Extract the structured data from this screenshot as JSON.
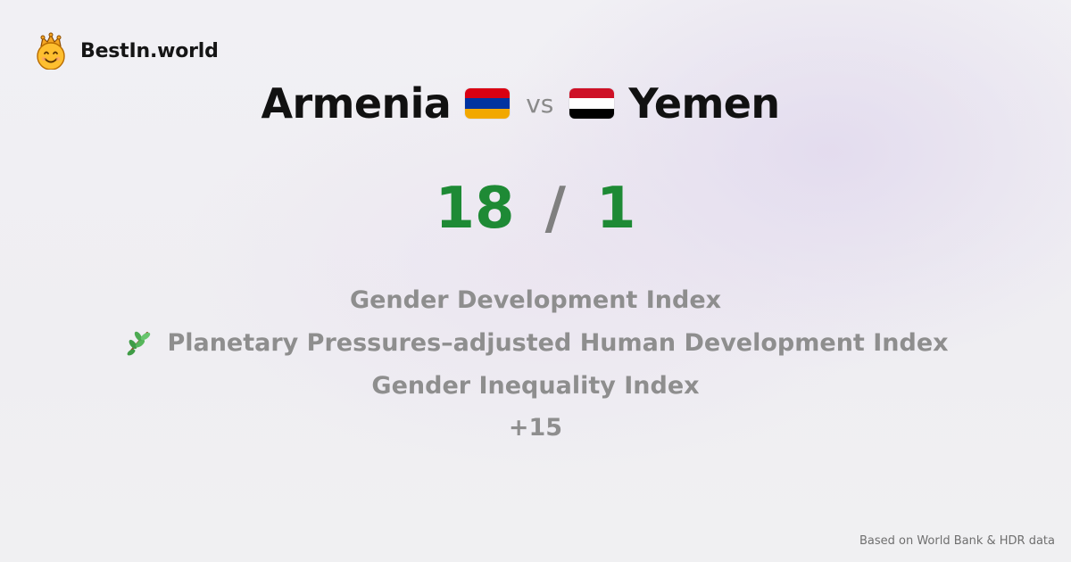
{
  "brand": {
    "name": "BestIn.world",
    "logo_icon": "smiling-face-with-crown-icon"
  },
  "comparison": {
    "left_country": "Armenia",
    "vs_label": "vs",
    "right_country": "Yemen",
    "left_flag_icon": "armenia-flag-icon",
    "right_flag_icon": "yemen-flag-icon",
    "left_flag_colors": [
      "#d90012",
      "#0033a0",
      "#f2a800"
    ],
    "right_flag_colors": [
      "#ce1126",
      "#ffffff",
      "#000000"
    ]
  },
  "score": {
    "left": "18",
    "separator": "/",
    "right": "1",
    "color": "#1e8a35"
  },
  "metrics": [
    {
      "label": "Gender Development Index"
    },
    {
      "label": "Planetary Pressures–adjusted Human Development Index",
      "icon": "herb-icon"
    },
    {
      "label": "Gender Inequality Index"
    }
  ],
  "more_label": "+15",
  "footer": {
    "source": "Based on World Bank & HDR data"
  }
}
